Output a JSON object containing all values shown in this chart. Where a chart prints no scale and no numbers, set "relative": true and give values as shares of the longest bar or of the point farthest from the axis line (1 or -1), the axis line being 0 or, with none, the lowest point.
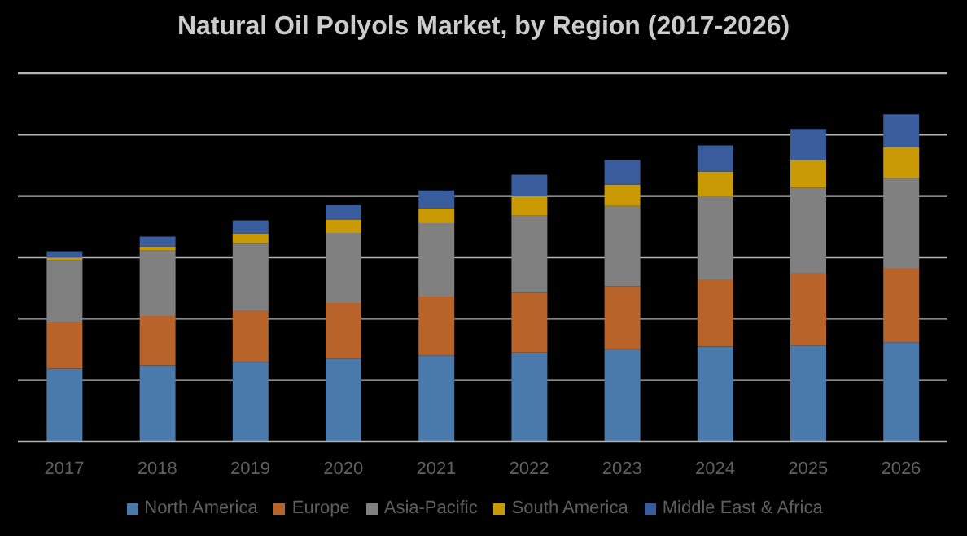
{
  "chart_data": {
    "type": "bar",
    "title": "Natural Oil Polyols Market, by Region (2017-2026)",
    "categories": [
      "2017",
      "2018",
      "2019",
      "2020",
      "2021",
      "2022",
      "2023",
      "2024",
      "2025",
      "2026"
    ],
    "stacked": true,
    "relative": true,
    "grid": "y",
    "legend": "bottom",
    "series": [
      {
        "name": "North America",
        "color": "#4a7aab",
        "values": [
          0.223,
          0.233,
          0.243,
          0.253,
          0.263,
          0.272,
          0.282,
          0.29,
          0.293,
          0.303
        ]
      },
      {
        "name": "Europe",
        "color": "#b8632a",
        "values": [
          0.143,
          0.15,
          0.158,
          0.17,
          0.18,
          0.183,
          0.193,
          0.205,
          0.222,
          0.227
        ]
      },
      {
        "name": "Asia-Pacific",
        "color": "#808080",
        "values": [
          0.187,
          0.2,
          0.205,
          0.214,
          0.224,
          0.235,
          0.245,
          0.255,
          0.26,
          0.275
        ]
      },
      {
        "name": "South America",
        "color": "#c99a04",
        "values": [
          0.008,
          0.013,
          0.03,
          0.04,
          0.046,
          0.06,
          0.065,
          0.075,
          0.085,
          0.095
        ]
      },
      {
        "name": "Middle East & Africa",
        "color": "#395c9c",
        "values": [
          0.02,
          0.03,
          0.04,
          0.045,
          0.054,
          0.065,
          0.075,
          0.08,
          0.095,
          0.1
        ]
      }
    ]
  }
}
